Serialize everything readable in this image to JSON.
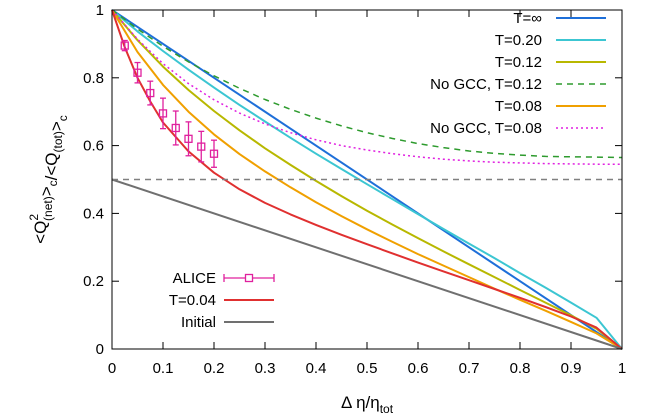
{
  "chart_data": {
    "type": "line",
    "title": "",
    "xlabel": {
      "main": "Δ η/η",
      "sub": "tot"
    },
    "ylabel": {
      "parts": [
        {
          "t": "<Q",
          "sub": "(net)",
          "sup": "2"
        },
        {
          "t": ">"
        },
        {
          "sub": "c"
        },
        {
          "t": "/<Q"
        },
        {
          "sub": "(tot)"
        },
        {
          "t": ">"
        },
        {
          "sub": "c"
        }
      ]
    },
    "xlim": [
      0,
      1
    ],
    "ylim": [
      0,
      1
    ],
    "xticks": [
      0,
      0.1,
      0.2,
      0.3,
      0.4,
      0.5,
      0.6,
      0.7,
      0.8,
      0.9,
      1
    ],
    "xtick_labels": [
      "0",
      "0.1",
      "0.2",
      "0.3",
      "0.4",
      "0.5",
      "0.6",
      "0.7",
      "0.8",
      "0.9",
      "1"
    ],
    "yticks": [
      0,
      0.2,
      0.4,
      0.6,
      0.8,
      1
    ],
    "ytick_labels": [
      "0",
      "0.2",
      "0.4",
      "0.6",
      "0.8",
      "1"
    ],
    "grid": false,
    "legend_top": {
      "placement": "top-right"
    },
    "legend_bottom": {
      "placement": "bottom-left"
    },
    "series": [
      {
        "name": "T=∞",
        "style": "solid",
        "color": "#1e6fd9",
        "x": [
          0,
          1
        ],
        "y": [
          1,
          0
        ]
      },
      {
        "name": "T=0.20",
        "style": "solid",
        "color": "#3cc6d2",
        "x": [
          0,
          0.05,
          0.1,
          0.15,
          0.2,
          0.25,
          0.3,
          0.35,
          0.4,
          0.45,
          0.5,
          0.55,
          0.6,
          0.65,
          0.7,
          0.75,
          0.8,
          0.85,
          0.9,
          0.95,
          1
        ],
        "y": [
          1,
          0.937,
          0.879,
          0.824,
          0.771,
          0.72,
          0.671,
          0.623,
          0.576,
          0.531,
          0.486,
          0.442,
          0.398,
          0.354,
          0.311,
          0.268,
          0.224,
          0.181,
          0.137,
          0.092,
          0
        ]
      },
      {
        "name": "T=0.12",
        "style": "solid",
        "color": "#b8b800",
        "x": [
          0,
          0.05,
          0.1,
          0.15,
          0.2,
          0.25,
          0.3,
          0.35,
          0.4,
          0.45,
          0.5,
          0.55,
          0.6,
          0.65,
          0.7,
          0.75,
          0.8,
          0.85,
          0.9,
          0.95,
          1
        ],
        "y": [
          1,
          0.911,
          0.833,
          0.764,
          0.702,
          0.645,
          0.592,
          0.543,
          0.496,
          0.451,
          0.408,
          0.367,
          0.327,
          0.288,
          0.25,
          0.212,
          0.174,
          0.137,
          0.099,
          0.06,
          0
        ]
      },
      {
        "name": "No GCC, T=0.12",
        "style": "dash",
        "color": "#2e9b2e",
        "x": [
          0,
          0.05,
          0.1,
          0.15,
          0.2,
          0.25,
          0.3,
          0.35,
          0.4,
          0.45,
          0.5,
          0.55,
          0.6,
          0.65,
          0.7,
          0.75,
          0.8,
          0.85,
          0.9,
          0.95,
          1
        ],
        "y": [
          1,
          0.944,
          0.893,
          0.847,
          0.806,
          0.769,
          0.736,
          0.707,
          0.681,
          0.658,
          0.638,
          0.621,
          0.606,
          0.594,
          0.584,
          0.577,
          0.572,
          0.568,
          0.567,
          0.566,
          0.565
        ]
      },
      {
        "name": "T=0.08",
        "style": "solid",
        "color": "#f0a000",
        "x": [
          0,
          0.05,
          0.1,
          0.15,
          0.2,
          0.25,
          0.3,
          0.35,
          0.4,
          0.45,
          0.5,
          0.55,
          0.6,
          0.65,
          0.7,
          0.75,
          0.8,
          0.85,
          0.9,
          0.95,
          1
        ],
        "y": [
          1,
          0.876,
          0.779,
          0.7,
          0.633,
          0.575,
          0.524,
          0.477,
          0.433,
          0.392,
          0.353,
          0.316,
          0.28,
          0.246,
          0.212,
          0.178,
          0.145,
          0.113,
          0.08,
          0.046,
          0
        ]
      },
      {
        "name": "No GCC, T=0.08",
        "style": "dot",
        "color": "#e020e0",
        "x": [
          0,
          0.05,
          0.1,
          0.15,
          0.2,
          0.25,
          0.3,
          0.35,
          0.4,
          0.45,
          0.5,
          0.55,
          0.6,
          0.65,
          0.7,
          0.75,
          0.8,
          0.85,
          0.9,
          0.95,
          1
        ],
        "y": [
          1,
          0.914,
          0.842,
          0.783,
          0.735,
          0.696,
          0.664,
          0.638,
          0.617,
          0.6,
          0.587,
          0.576,
          0.567,
          0.56,
          0.555,
          0.551,
          0.549,
          0.547,
          0.546,
          0.545,
          0.545
        ]
      },
      {
        "name": "T=0.04",
        "style": "solid",
        "color": "#e03030",
        "x": [
          0,
          0.025,
          0.05,
          0.075,
          0.1,
          0.15,
          0.2,
          0.25,
          0.3,
          0.35,
          0.4,
          0.45,
          0.5,
          0.55,
          0.6,
          0.65,
          0.7,
          0.75,
          0.8,
          0.85,
          0.9,
          0.95,
          1
        ],
        "y": [
          1,
          0.89,
          0.8,
          0.73,
          0.668,
          0.583,
          0.52,
          0.471,
          0.431,
          0.397,
          0.366,
          0.337,
          0.309,
          0.282,
          0.255,
          0.229,
          0.203,
          0.177,
          0.151,
          0.124,
          0.096,
          0.063,
          0
        ]
      },
      {
        "name": "Initial",
        "style": "solid",
        "color": "#707070",
        "x": [
          0,
          1
        ],
        "y": [
          0.5,
          0
        ]
      },
      {
        "name": "",
        "style": "dash",
        "color": "#808080",
        "x": [
          0,
          1
        ],
        "y": [
          0.5,
          0.5
        ]
      }
    ],
    "points": {
      "name": "ALICE",
      "color": "#e0209e",
      "x": [
        0.025,
        0.05,
        0.075,
        0.1,
        0.125,
        0.15,
        0.175,
        0.2
      ],
      "y": [
        0.895,
        0.815,
        0.755,
        0.695,
        0.652,
        0.62,
        0.597,
        0.576
      ],
      "yerr": [
        0.015,
        0.03,
        0.035,
        0.045,
        0.05,
        0.05,
        0.045,
        0.04
      ]
    },
    "legend_order_top": [
      "T=∞",
      "T=0.20",
      "T=0.12",
      "No GCC, T=0.12",
      "T=0.08",
      "No GCC, T=0.08"
    ],
    "legend_order_bottom": [
      "ALICE",
      "T=0.04",
      "Initial"
    ]
  }
}
